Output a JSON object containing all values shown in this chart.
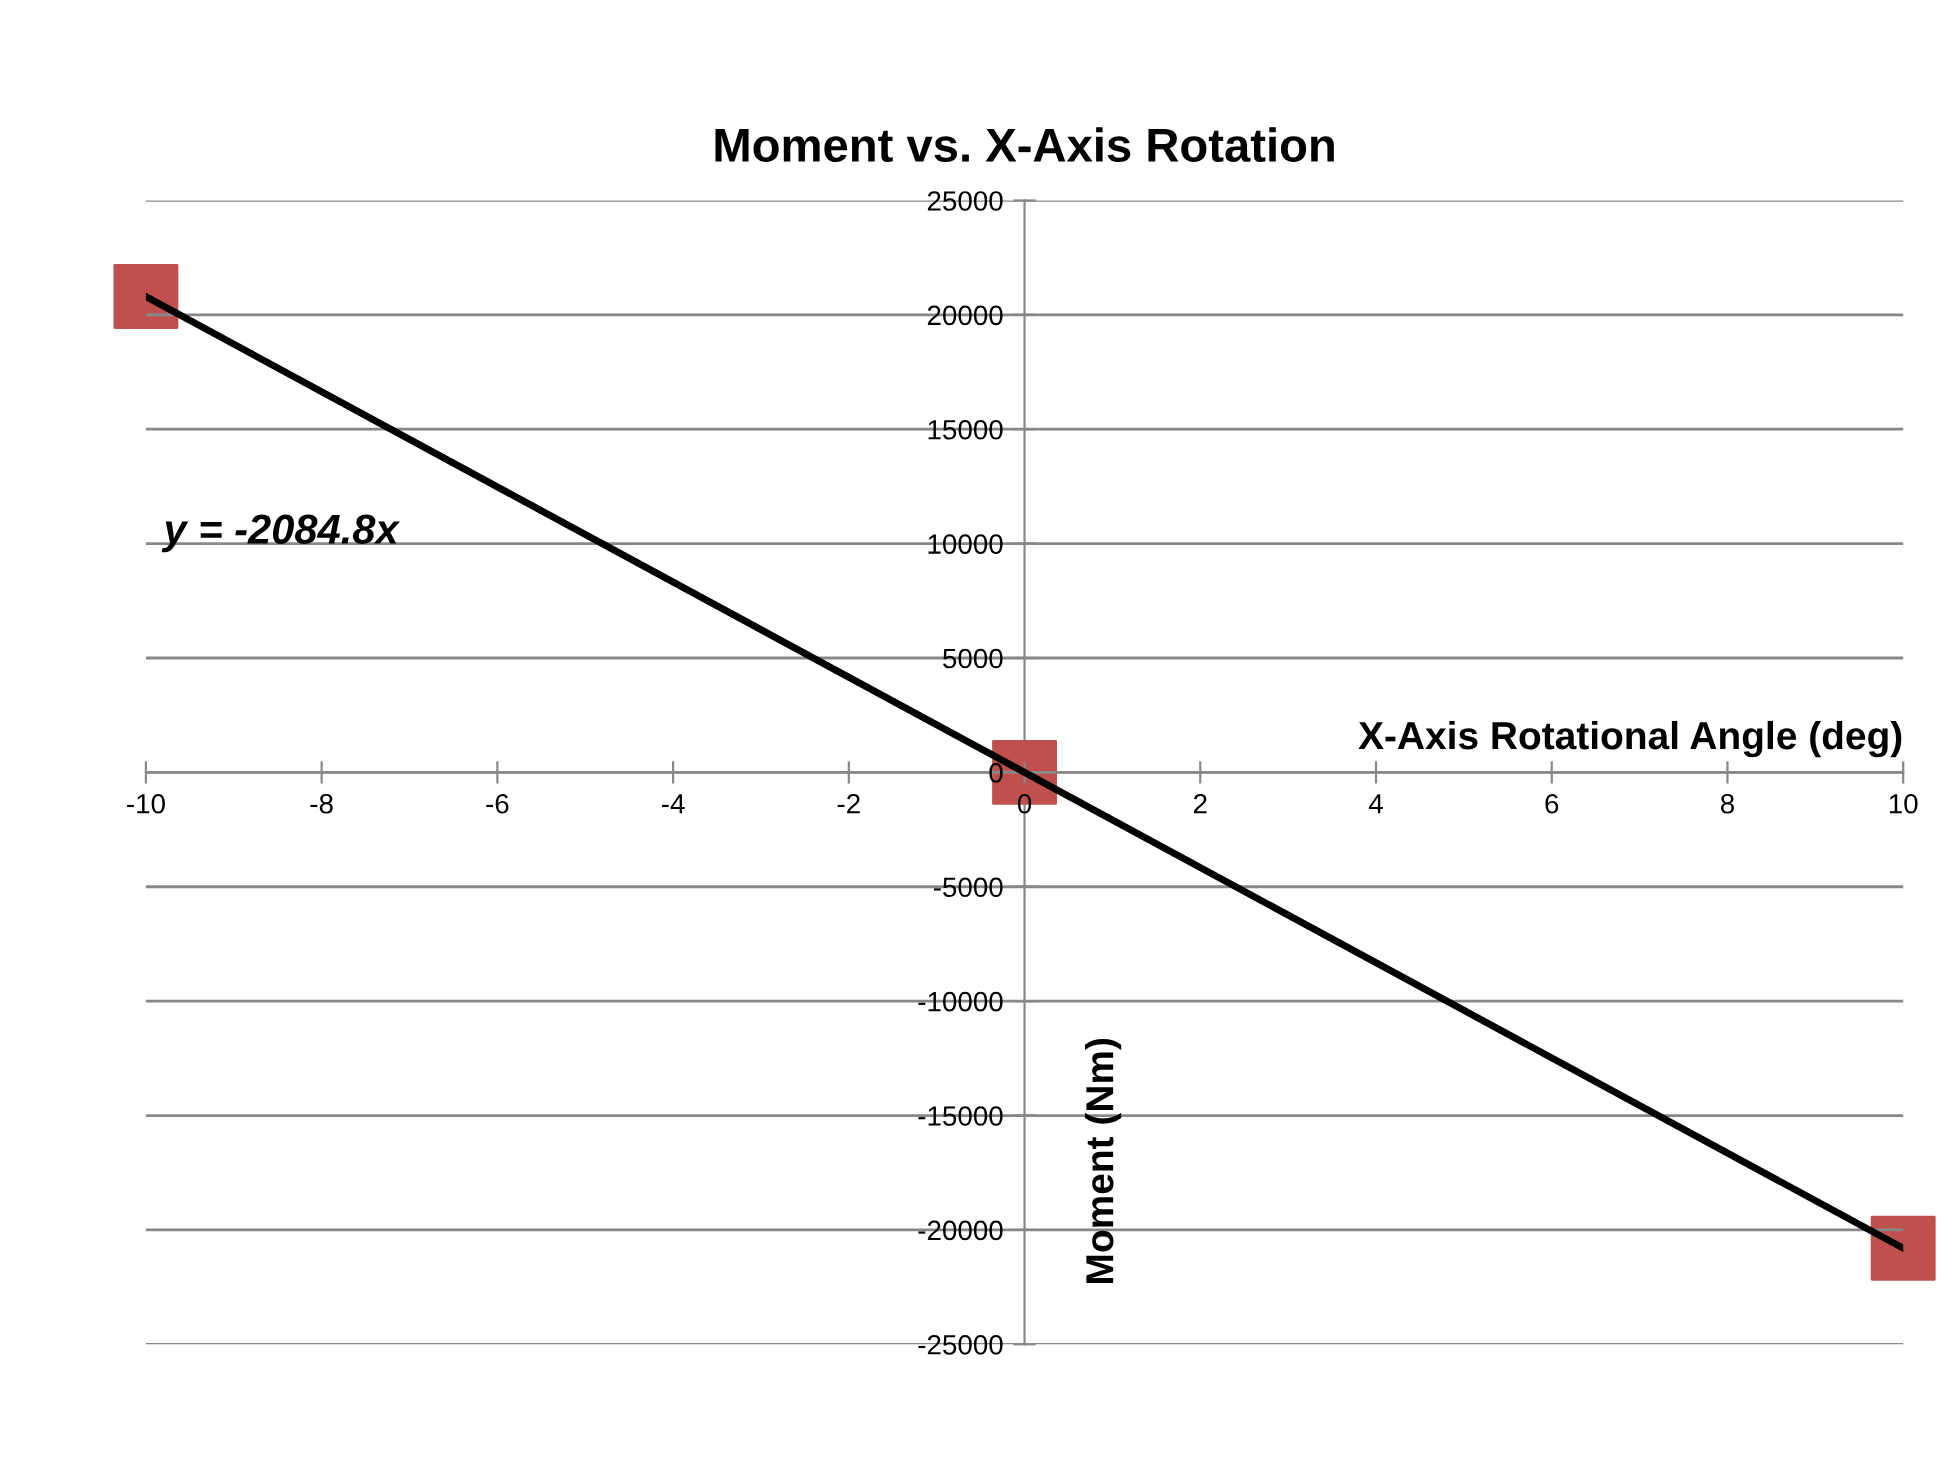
{
  "chart_data": {
    "type": "scatter",
    "title": "Moment vs. X-Axis Rotation",
    "xlabel": "X-Axis Rotational Angle (deg)",
    "ylabel": "Moment (Nm)",
    "x": [
      -10,
      0,
      10
    ],
    "series": [
      {
        "color": "#c0504d",
        "values": [
          20800,
          0,
          -20800
        ],
        "marker": "square"
      },
      {
        "type": "line",
        "color": "#000000",
        "x": [
          -10,
          10
        ],
        "values": [
          20800,
          -20800
        ],
        "marker": "none",
        "line_style": "solid"
      }
    ],
    "annotations": [
      "y = -2084.8x"
    ],
    "xlim": [
      -10,
      10
    ],
    "xticks": [
      -10,
      -8,
      -6,
      -4,
      -2,
      0,
      2,
      4,
      6,
      8,
      10
    ],
    "ylim": [
      -25000,
      25000
    ],
    "yticks": [
      -25000,
      -20000,
      -15000,
      -10000,
      -5000,
      0,
      5000,
      10000,
      15000,
      20000,
      25000
    ],
    "grid": "y",
    "legend": false
  }
}
